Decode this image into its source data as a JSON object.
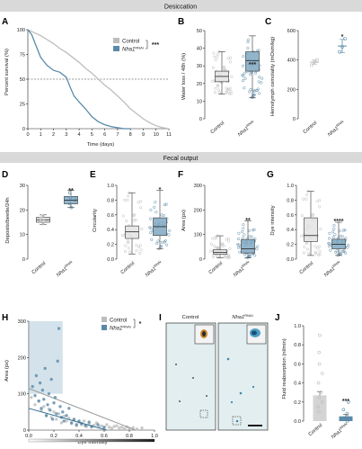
{
  "colors": {
    "control": "#bdbdbd",
    "nha1": "#5a8aa8",
    "nha1_light": "#9fc0d3",
    "banner": "#d9d9d9"
  },
  "banners": {
    "top": "Desiccation",
    "middle": "Fecal output"
  },
  "panels": {
    "A": {
      "letter": "A",
      "xlabel": "Time (days)",
      "ylabel": "Percent survival (%)",
      "xticks": [
        "0",
        "1",
        "2",
        "3",
        "4",
        "5",
        "6",
        "7",
        "8",
        "9",
        "10",
        "11"
      ],
      "yticks": [
        "0",
        "25",
        "50",
        "75",
        "100"
      ],
      "legend": [
        "Control",
        "Nha1"
      ],
      "legend_superscript": "RNAi",
      "sig": "***"
    },
    "B": {
      "letter": "B",
      "ylabel": "Water loss / 48h (%)",
      "yticks": [
        "0",
        "10",
        "20",
        "30",
        "40",
        "50"
      ],
      "categories": [
        "Control",
        "Nha1"
      ],
      "cat_superscript": "RNAi",
      "sig": "***"
    },
    "C": {
      "letter": "C",
      "ylabel": "Hemolymph osmolality (mOsm/kg)",
      "yticks": [
        "0",
        "200",
        "400",
        "600"
      ],
      "categories": [
        "Control",
        "Nha1"
      ],
      "cat_superscript": "RNAi",
      "sig": "*"
    },
    "D": {
      "letter": "D",
      "ylabel": "Deposits/beetle/24h",
      "yticks": [
        "0",
        "10",
        "20",
        "30"
      ],
      "categories": [
        "Control",
        "Nha1"
      ],
      "cat_superscript": "RNAi",
      "sig": "**"
    },
    "E": {
      "letter": "E",
      "ylabel": "Circularity",
      "yticks": [
        "0.0",
        "0.2",
        "0.4",
        "0.6",
        "0.8",
        "1.0"
      ],
      "categories": [
        "Control",
        "Nha1"
      ],
      "cat_superscript": "RNAi",
      "sig": "*"
    },
    "F": {
      "letter": "F",
      "ylabel": "Area (px)",
      "yticks": [
        "0",
        "100",
        "200",
        "300"
      ],
      "categories": [
        "Control",
        "Nha1"
      ],
      "cat_superscript": "RNAi",
      "sig": "**"
    },
    "G": {
      "letter": "G",
      "ylabel": "Dye intensity",
      "yticks": [
        "0.0",
        "0.2",
        "0.4",
        "0.6",
        "0.8",
        "1.0"
      ],
      "categories": [
        "Control",
        "Nha1"
      ],
      "cat_superscript": "RNAi",
      "sig": "****"
    },
    "H": {
      "letter": "H",
      "xlabel": "Dye intensity",
      "ylabel": "Area (px)",
      "xticks": [
        "0.0",
        "0.2",
        "0.4",
        "0.6",
        "0.8",
        "1.0"
      ],
      "yticks": [
        "0",
        "100",
        "200",
        "300"
      ],
      "legend": [
        "Control",
        "Nha1"
      ],
      "legend_superscript": "RNAi",
      "sig": "*"
    },
    "I": {
      "letter": "I",
      "titles": [
        "Control",
        "Nha1"
      ],
      "title_superscript": "RNAi"
    },
    "J": {
      "letter": "J",
      "ylabel": "Fluid reabsorption (nl/min)",
      "yticks": [
        "0.0",
        "0.2",
        "0.4",
        "0.6",
        "0.8",
        "1.0"
      ],
      "categories": [
        "Control",
        "Nha1"
      ],
      "cat_superscript": "RNAi",
      "sig": "***"
    }
  },
  "chart_data": [
    {
      "type": "line",
      "panel": "A",
      "xlim": [
        0,
        11
      ],
      "ylim": [
        0,
        100
      ],
      "series": [
        {
          "name": "Control",
          "x": [
            0,
            0.5,
            1,
            1.5,
            2,
            2.5,
            3,
            3.5,
            4,
            4.5,
            5,
            5.5,
            6,
            6.5,
            7,
            7.5,
            8,
            8.5,
            9,
            9.5,
            10,
            10.5,
            11
          ],
          "y": [
            100,
            97,
            94,
            90,
            86,
            81,
            77,
            72,
            67,
            61,
            56,
            50,
            44,
            39,
            33,
            27,
            20,
            15,
            10,
            6,
            3,
            1,
            0
          ]
        },
        {
          "name": "Nha1",
          "x": [
            0,
            0.3,
            0.6,
            1,
            1.5,
            2,
            2.5,
            3,
            3.3,
            3.6,
            4,
            4.5,
            5,
            5.5,
            6,
            6.5,
            7,
            7.5,
            8
          ],
          "y": [
            100,
            95,
            85,
            72,
            64,
            59,
            57,
            52,
            42,
            33,
            27,
            20,
            12,
            7,
            4,
            2,
            1,
            0,
            0
          ]
        }
      ],
      "reference_line": 50
    },
    {
      "type": "box",
      "panel": "B",
      "ylim": [
        0,
        50
      ],
      "categories": [
        "Control",
        "Nha1"
      ],
      "boxes": [
        {
          "min": 14,
          "q1": 21,
          "median": 24,
          "q3": 27,
          "max": 38
        },
        {
          "min": 12,
          "q1": 27,
          "median": 33,
          "q3": 38,
          "max": 47
        }
      ]
    },
    {
      "type": "mean_sem",
      "panel": "C",
      "ylim": [
        0,
        600
      ],
      "categories": [
        "Control",
        "Nha1"
      ],
      "groups": [
        {
          "mean": 385,
          "sem": 15,
          "points": [
            365,
            385,
            400
          ]
        },
        {
          "mean": 495,
          "sem": 45,
          "points": [
            455,
            490,
            545
          ]
        }
      ]
    },
    {
      "type": "box",
      "panel": "D",
      "ylim": [
        0,
        30
      ],
      "categories": [
        "Control",
        "Nha1"
      ],
      "boxes": [
        {
          "min": 14,
          "q1": 15,
          "median": 16,
          "q3": 17,
          "max": 18
        },
        {
          "min": 21,
          "q1": 22.5,
          "median": 24,
          "q3": 25.5,
          "max": 28
        }
      ],
      "points": [
        [
          14.5,
          15.5,
          16,
          16.5,
          17.5
        ],
        [
          21,
          22.5,
          24,
          25,
          27
        ]
      ]
    },
    {
      "type": "box",
      "panel": "E",
      "ylim": [
        0,
        1
      ],
      "categories": [
        "Control",
        "Nha1"
      ],
      "boxes": [
        {
          "min": 0.07,
          "q1": 0.28,
          "median": 0.37,
          "q3": 0.45,
          "max": 0.9
        },
        {
          "min": 0.14,
          "q1": 0.32,
          "median": 0.44,
          "q3": 0.56,
          "max": 0.93
        }
      ]
    },
    {
      "type": "box",
      "panel": "F",
      "ylim": [
        0,
        300
      ],
      "categories": [
        "Control",
        "Nha1"
      ],
      "boxes": [
        {
          "min": 5,
          "q1": 20,
          "median": 27,
          "q3": 38,
          "max": 95
        },
        {
          "min": 5,
          "q1": 25,
          "median": 42,
          "q3": 80,
          "max": 155
        }
      ]
    },
    {
      "type": "box",
      "panel": "G",
      "ylim": [
        0,
        1
      ],
      "categories": [
        "Control",
        "Nha1"
      ],
      "boxes": [
        {
          "min": 0.05,
          "q1": 0.24,
          "median": 0.32,
          "q3": 0.56,
          "max": 0.92
        },
        {
          "min": 0.05,
          "q1": 0.14,
          "median": 0.2,
          "q3": 0.27,
          "max": 0.5
        }
      ]
    },
    {
      "type": "scatter",
      "panel": "H",
      "xlim": [
        0,
        1
      ],
      "ylim": [
        0,
        300
      ],
      "shaded_region": {
        "x": [
          0,
          0.27
        ],
        "y": [
          100,
          300
        ]
      },
      "series": [
        {
          "name": "Control",
          "trend": {
            "x": [
              0,
              0.85
            ],
            "y": [
              115,
              0
            ]
          },
          "points": [
            [
              0.02,
              90
            ],
            [
              0.05,
              70
            ],
            [
              0.08,
              80
            ],
            [
              0.1,
              55
            ],
            [
              0.12,
              65
            ],
            [
              0.14,
              40
            ],
            [
              0.16,
              58
            ],
            [
              0.18,
              35
            ],
            [
              0.2,
              50
            ],
            [
              0.22,
              30
            ],
            [
              0.24,
              45
            ],
            [
              0.26,
              20
            ],
            [
              0.28,
              38
            ],
            [
              0.3,
              25
            ],
            [
              0.32,
              33
            ],
            [
              0.34,
              18
            ],
            [
              0.36,
              28
            ],
            [
              0.38,
              12
            ],
            [
              0.4,
              22
            ],
            [
              0.42,
              15
            ],
            [
              0.44,
              25
            ],
            [
              0.46,
              10
            ],
            [
              0.48,
              18
            ],
            [
              0.5,
              8
            ],
            [
              0.52,
              14
            ],
            [
              0.54,
              20
            ],
            [
              0.56,
              9
            ],
            [
              0.58,
              12
            ],
            [
              0.6,
              6
            ],
            [
              0.62,
              15
            ],
            [
              0.64,
              8
            ],
            [
              0.66,
              5
            ],
            [
              0.68,
              10
            ],
            [
              0.7,
              12
            ],
            [
              0.72,
              6
            ],
            [
              0.74,
              8
            ],
            [
              0.76,
              4
            ],
            [
              0.78,
              9
            ],
            [
              0.8,
              5
            ],
            [
              0.83,
              7
            ],
            [
              0.86,
              3
            ],
            [
              0.9,
              6
            ]
          ]
        },
        {
          "name": "Nha1",
          "trend": {
            "x": [
              0,
              0.62
            ],
            "y": [
              60,
              0
            ]
          },
          "points": [
            [
              0.03,
              120
            ],
            [
              0.05,
              95
            ],
            [
              0.06,
              150
            ],
            [
              0.08,
              80
            ],
            [
              0.09,
              130
            ],
            [
              0.1,
              60
            ],
            [
              0.11,
              110
            ],
            [
              0.12,
              85
            ],
            [
              0.13,
              170
            ],
            [
              0.14,
              40
            ],
            [
              0.15,
              70
            ],
            [
              0.16,
              100
            ],
            [
              0.17,
              55
            ],
            [
              0.18,
              140
            ],
            [
              0.19,
              30
            ],
            [
              0.2,
              75
            ],
            [
              0.21,
              90
            ],
            [
              0.22,
              45
            ],
            [
              0.23,
              190
            ],
            [
              0.24,
              280
            ],
            [
              0.25,
              65
            ],
            [
              0.26,
              35
            ],
            [
              0.27,
              50
            ],
            [
              0.28,
              25
            ],
            [
              0.3,
              40
            ],
            [
              0.32,
              60
            ],
            [
              0.34,
              20
            ],
            [
              0.36,
              30
            ],
            [
              0.38,
              15
            ],
            [
              0.4,
              25
            ],
            [
              0.42,
              18
            ],
            [
              0.45,
              12
            ],
            [
              0.48,
              22
            ],
            [
              0.5,
              10
            ],
            [
              0.55,
              15
            ],
            [
              0.6,
              8
            ]
          ]
        }
      ]
    },
    {
      "type": "bar",
      "panel": "J",
      "ylim": [
        0,
        1
      ],
      "categories": [
        "Control",
        "Nha1"
      ],
      "values": [
        0.27,
        0.05
      ],
      "errors": [
        0.04,
        0.02
      ],
      "points": [
        [
          0.1,
          0.15,
          0.2,
          0.25,
          0.3,
          0.4,
          0.5,
          0.6,
          0.72,
          0.9
        ],
        [
          0.0,
          0.02,
          0.05,
          0.08,
          0.12,
          0.2
        ]
      ]
    }
  ]
}
